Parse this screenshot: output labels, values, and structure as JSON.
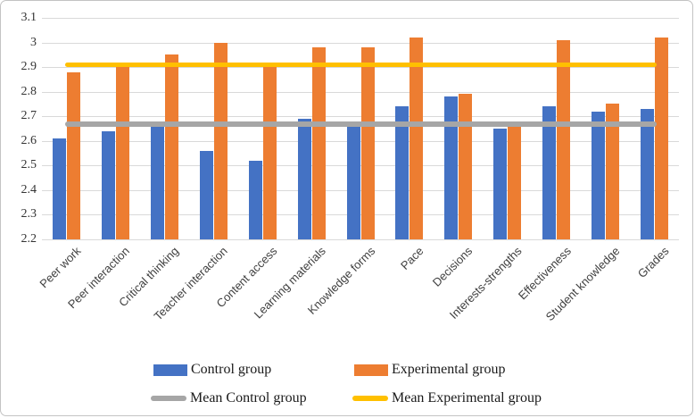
{
  "chart_data": {
    "type": "bar",
    "title": "",
    "xlabel": "",
    "ylabel": "",
    "categories": [
      "Peer work",
      "Peer interaction",
      "Critical thinking",
      "Teacher interaction",
      "Content access",
      "Learning materials",
      "Knowledge forms",
      "Pace",
      "Decisions",
      "Interests-strengths",
      "Effectiveness",
      "Student knowledge",
      "Grades"
    ],
    "series": [
      {
        "name": "Control group",
        "color": "#4472C4",
        "values": [
          2.61,
          2.64,
          2.66,
          2.56,
          2.52,
          2.69,
          2.66,
          2.74,
          2.78,
          2.65,
          2.74,
          2.72,
          2.73
        ]
      },
      {
        "name": "Experimental group",
        "color": "#ED7D31",
        "values": [
          2.88,
          2.9,
          2.95,
          3.0,
          2.9,
          2.98,
          2.98,
          3.02,
          2.79,
          2.66,
          3.01,
          2.75,
          3.02
        ]
      }
    ],
    "mean_lines": [
      {
        "name": "Mean Control group",
        "color": "#A6A6A6",
        "value": 2.67,
        "thickness": 6
      },
      {
        "name": "Mean Experimental group",
        "color": "#FFC000",
        "value": 2.91,
        "thickness": 5
      }
    ],
    "ylim": [
      2.2,
      3.1
    ],
    "ytick_step": 0.1,
    "ytick_labels": [
      "3.1",
      "3",
      "2.9",
      "2.8",
      "2.7",
      "2.6",
      "2.5",
      "2.4",
      "2.3",
      "2.2"
    ],
    "grid": true,
    "gridline_color": "#d9d9d9",
    "legend_position": "bottom"
  },
  "legend": {
    "items": [
      {
        "label": "Control group",
        "type": "bar",
        "color": "#4472C4"
      },
      {
        "label": "Experimental group",
        "type": "bar",
        "color": "#ED7D31"
      },
      {
        "label": "Mean Control group",
        "type": "line",
        "color": "#A6A6A6"
      },
      {
        "label": "Mean Experimental group",
        "type": "line",
        "color": "#FFC000"
      }
    ]
  }
}
